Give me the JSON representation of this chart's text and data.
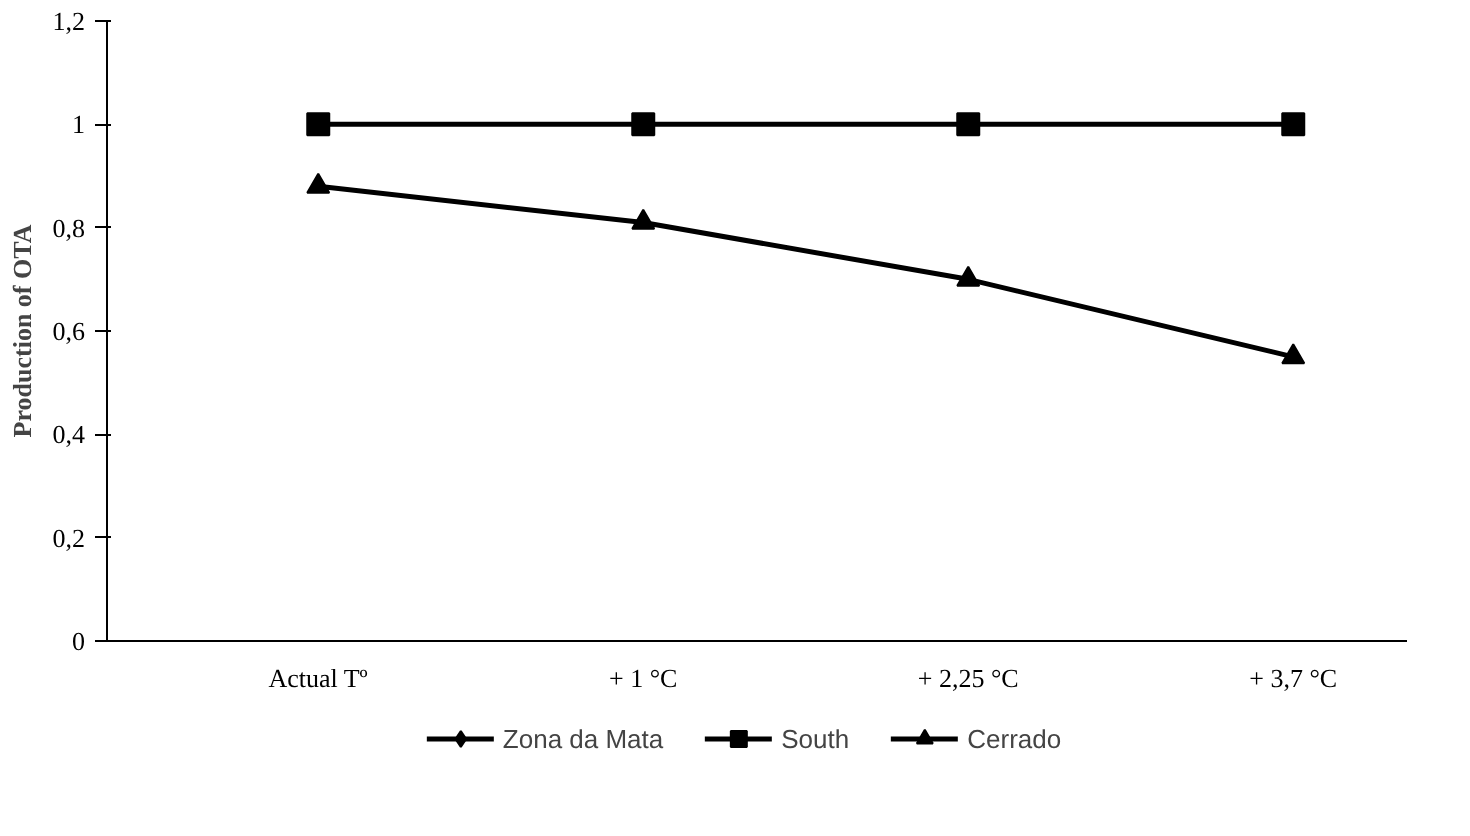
{
  "chart_data": {
    "type": "line",
    "ylabel": "Production of OTA",
    "categories": [
      "Actual Tº",
      "+ 1 °C",
      "+ 2,25 °C",
      "+ 3,7 °C"
    ],
    "series": [
      {
        "name": "Zona da Mata",
        "color": "#000000",
        "marker": "diamond",
        "values": [
          null,
          null,
          null,
          null
        ]
      },
      {
        "name": "South",
        "color": "#000000",
        "marker": "square",
        "values": [
          1,
          1,
          1,
          1
        ]
      },
      {
        "name": "Cerrado",
        "color": "#000000",
        "marker": "triangle",
        "values": [
          0.88,
          0.81,
          0.7,
          0.55
        ]
      }
    ],
    "ylim": [
      0,
      1.2
    ],
    "yticks": [
      0,
      {
        "value": 0.2,
        "label": "0,2"
      },
      {
        "value": 0.4,
        "label": "0,4"
      },
      {
        "value": 0.6,
        "label": "0,6"
      },
      {
        "value": 0.8,
        "label": "0,8"
      },
      1,
      {
        "value": 1.2,
        "label": "1,2"
      }
    ],
    "grid": false,
    "legend": "bottom",
    "line_style": "solid"
  }
}
